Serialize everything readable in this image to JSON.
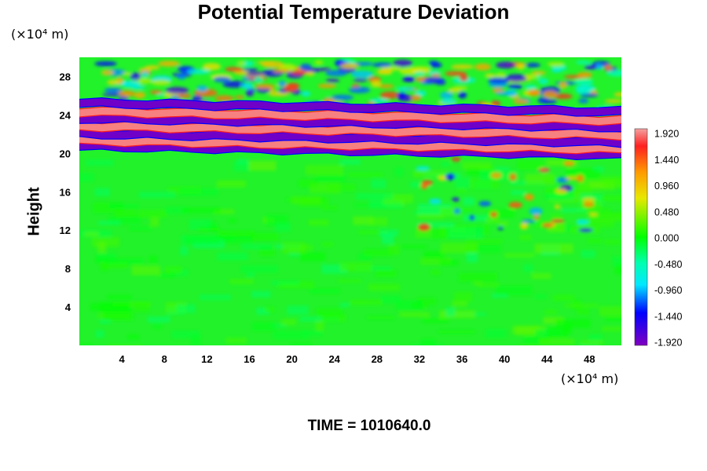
{
  "chart_data": {
    "type": "heatmap",
    "title": "Potential Temperature Deviation",
    "ylabel": "Height",
    "x_unit": "(×10⁴ m)",
    "y_unit": "(×10⁴ m)",
    "xlim": [
      0,
      51
    ],
    "ylim": [
      0,
      30
    ],
    "x_ticks": [
      "4",
      "8",
      "12",
      "16",
      "20",
      "24",
      "28",
      "32",
      "36",
      "40",
      "44",
      "48"
    ],
    "y_ticks": [
      "4",
      "8",
      "12",
      "16",
      "20",
      "24",
      "28"
    ],
    "colorbar": {
      "min": -2.0,
      "max": 2.0,
      "labels": [
        "1.920",
        "1.440",
        "0.960",
        "0.480",
        "0.000",
        "-0.480",
        "-0.960",
        "-1.440",
        "-1.920"
      ]
    },
    "bands": [
      {
        "y": 20.3,
        "value": -1.92
      },
      {
        "y": 20.9,
        "value": 1.92
      },
      {
        "y": 21.6,
        "value": -1.92
      },
      {
        "y": 22.4,
        "value": 1.92
      },
      {
        "y": 23.2,
        "value": -1.92
      },
      {
        "y": 23.9,
        "value": 1.92
      },
      {
        "y": 24.8,
        "value": -1.92
      }
    ]
  },
  "footer": {
    "time": "TIME = 1010640.0"
  }
}
